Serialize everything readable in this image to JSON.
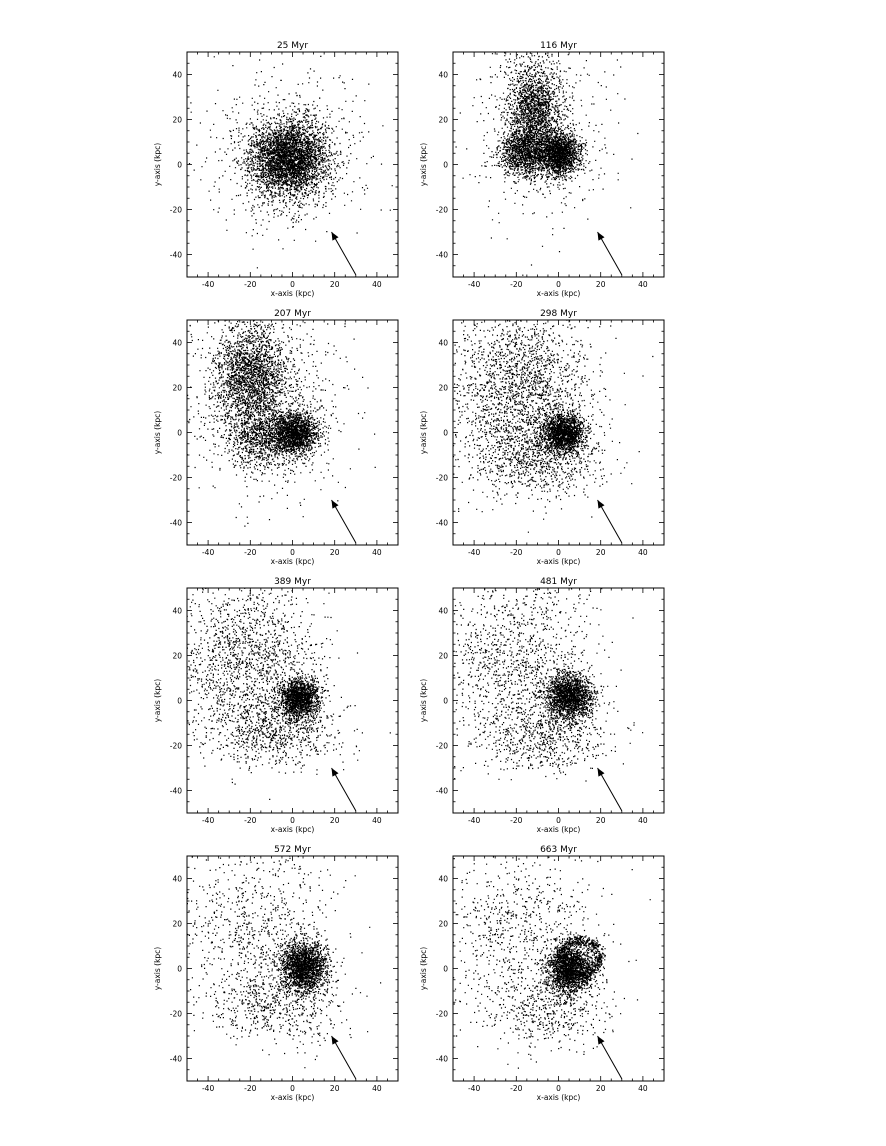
{
  "figure": {
    "description_free": true
  },
  "chart_data": [
    {
      "type": "scatter",
      "title": "25 Myr",
      "xlabel": "x-axis (kpc)",
      "ylabel": "y-axis (kpc)",
      "xlim": [
        -50,
        50
      ],
      "ylim": [
        -50,
        50
      ],
      "xticks": [
        -40,
        -20,
        0,
        20,
        40
      ],
      "yticks": [
        -40,
        -20,
        0,
        20,
        40
      ],
      "grid": false,
      "arrow": {
        "from": [
          30,
          -49
        ],
        "to": [
          18.5,
          -30
        ]
      },
      "components": [
        {
          "kind": "disk",
          "center": [
            -2,
            3
          ],
          "sigma": [
            11,
            10
          ],
          "points": 3200
        },
        {
          "kind": "halo",
          "center": [
            -2,
            3
          ],
          "sigma": [
            16,
            14
          ],
          "points": 900
        }
      ]
    },
    {
      "type": "scatter",
      "title": "116 Myr",
      "xlabel": "x-axis (kpc)",
      "ylabel": "y-axis (kpc)",
      "xlim": [
        -50,
        50
      ],
      "ylim": [
        -50,
        50
      ],
      "xticks": [
        -40,
        -20,
        0,
        20,
        40
      ],
      "yticks": [
        -40,
        -20,
        0,
        20,
        40
      ],
      "grid": false,
      "arrow": {
        "from": [
          30,
          -49
        ],
        "to": [
          18.5,
          -30
        ]
      },
      "components": [
        {
          "kind": "stream",
          "center": [
            -12,
            22
          ],
          "sigma": [
            8,
            15
          ],
          "points": 1900
        },
        {
          "kind": "core",
          "center": [
            0,
            5
          ],
          "sigma": [
            6,
            6
          ],
          "points": 1700
        },
        {
          "kind": "stream",
          "center": [
            -17,
            5
          ],
          "sigma": [
            7,
            6
          ],
          "points": 900
        },
        {
          "kind": "halo",
          "center": [
            -8,
            15
          ],
          "sigma": [
            14,
            18
          ],
          "points": 500
        }
      ]
    },
    {
      "type": "scatter",
      "title": "207 Myr",
      "xlabel": "x-axis (kpc)",
      "ylabel": "y-axis (kpc)",
      "xlim": [
        -50,
        50
      ],
      "ylim": [
        -50,
        50
      ],
      "xticks": [
        -40,
        -20,
        0,
        20,
        40
      ],
      "yticks": [
        -40,
        -20,
        0,
        20,
        40
      ],
      "grid": false,
      "arrow": {
        "from": [
          30,
          -49
        ],
        "to": [
          18.5,
          -30
        ]
      },
      "components": [
        {
          "kind": "core",
          "center": [
            1,
            0
          ],
          "sigma": [
            7,
            6
          ],
          "points": 1500
        },
        {
          "kind": "stream",
          "center": [
            -20,
            25
          ],
          "sigma": [
            11,
            15
          ],
          "points": 2200
        },
        {
          "kind": "stream",
          "center": [
            -13,
            -2
          ],
          "sigma": [
            12,
            8
          ],
          "points": 900
        },
        {
          "kind": "halo",
          "center": [
            -12,
            12
          ],
          "sigma": [
            17,
            20
          ],
          "points": 700
        }
      ]
    },
    {
      "type": "scatter",
      "title": "298 Myr",
      "xlabel": "x-axis (kpc)",
      "ylabel": "y-axis (kpc)",
      "xlim": [
        -50,
        50
      ],
      "ylim": [
        -50,
        50
      ],
      "xticks": [
        -40,
        -20,
        0,
        20,
        40
      ],
      "yticks": [
        -40,
        -20,
        0,
        20,
        40
      ],
      "grid": false,
      "arrow": {
        "from": [
          30,
          -49
        ],
        "to": [
          18.5,
          -30
        ]
      },
      "components": [
        {
          "kind": "core",
          "center": [
            2,
            0
          ],
          "sigma": [
            6,
            5.5
          ],
          "points": 1500
        },
        {
          "kind": "halo",
          "center": [
            -18,
            20
          ],
          "sigma": [
            15,
            16
          ],
          "points": 2000
        },
        {
          "kind": "halo",
          "center": [
            -10,
            -10
          ],
          "sigma": [
            14,
            8
          ],
          "points": 900
        }
      ]
    },
    {
      "type": "scatter",
      "title": "389 Myr",
      "xlabel": "x-axis (kpc)",
      "ylabel": "y-axis (kpc)",
      "xlim": [
        -50,
        50
      ],
      "ylim": [
        -50,
        50
      ],
      "xticks": [
        -40,
        -20,
        0,
        20,
        40
      ],
      "yticks": [
        -40,
        -20,
        0,
        20,
        40
      ],
      "grid": false,
      "arrow": {
        "from": [
          30,
          -49
        ],
        "to": [
          18.5,
          -30
        ]
      },
      "components": [
        {
          "kind": "core",
          "center": [
            3,
            1
          ],
          "sigma": [
            6,
            5.5
          ],
          "points": 1500
        },
        {
          "kind": "halo",
          "center": [
            -20,
            18
          ],
          "sigma": [
            15,
            17
          ],
          "points": 1600
        },
        {
          "kind": "halo",
          "center": [
            -8,
            -14
          ],
          "sigma": [
            14,
            7
          ],
          "points": 700
        }
      ]
    },
    {
      "type": "scatter",
      "title": "481 Myr",
      "xlabel": "x-axis (kpc)",
      "ylabel": "y-axis (kpc)",
      "xlim": [
        -50,
        50
      ],
      "ylim": [
        -50,
        50
      ],
      "xticks": [
        -40,
        -20,
        0,
        20,
        40
      ],
      "yticks": [
        -40,
        -20,
        0,
        20,
        40
      ],
      "grid": false,
      "arrow": {
        "from": [
          30,
          -49
        ],
        "to": [
          18.5,
          -30
        ]
      },
      "components": [
        {
          "kind": "core",
          "center": [
            5,
            2
          ],
          "sigma": [
            7,
            6.5
          ],
          "points": 1800
        },
        {
          "kind": "halo",
          "center": [
            -20,
            18
          ],
          "sigma": [
            16,
            17
          ],
          "points": 1200
        },
        {
          "kind": "halo",
          "center": [
            -6,
            -16
          ],
          "sigma": [
            14,
            7
          ],
          "points": 600
        }
      ]
    },
    {
      "type": "scatter",
      "title": "572 Myr",
      "xlabel": "x-axis (kpc)",
      "ylabel": "y-axis (kpc)",
      "xlim": [
        -50,
        50
      ],
      "ylim": [
        -50,
        50
      ],
      "xticks": [
        -40,
        -20,
        0,
        20,
        40
      ],
      "yticks": [
        -40,
        -20,
        0,
        20,
        40
      ],
      "grid": false,
      "arrow": {
        "from": [
          30,
          -49
        ],
        "to": [
          18.5,
          -30
        ]
      },
      "components": [
        {
          "kind": "core",
          "center": [
            5,
            1
          ],
          "sigma": [
            7,
            7
          ],
          "points": 1900
        },
        {
          "kind": "halo",
          "center": [
            -18,
            15
          ],
          "sigma": [
            17,
            18
          ],
          "points": 900
        },
        {
          "kind": "halo",
          "center": [
            -6,
            -18
          ],
          "sigma": [
            14,
            7
          ],
          "points": 450
        }
      ]
    },
    {
      "type": "scatter",
      "title": "663 Myr",
      "xlabel": "x-axis (kpc)",
      "ylabel": "y-axis (kpc)",
      "xlim": [
        -50,
        50
      ],
      "ylim": [
        -50,
        50
      ],
      "xticks": [
        -40,
        -20,
        0,
        20,
        40
      ],
      "yticks": [
        -40,
        -20,
        0,
        20,
        40
      ],
      "grid": false,
      "arrow": {
        "from": [
          30,
          -49
        ],
        "to": [
          18.5,
          -30
        ]
      },
      "components": [
        {
          "kind": "core",
          "center": [
            5,
            0
          ],
          "sigma": [
            7,
            7
          ],
          "points": 1800
        },
        {
          "kind": "ring",
          "center": [
            10,
            5
          ],
          "sigma": [
            9,
            8
          ],
          "points": 700
        },
        {
          "kind": "halo",
          "center": [
            -18,
            15
          ],
          "sigma": [
            17,
            18
          ],
          "points": 800
        },
        {
          "kind": "halo",
          "center": [
            -5,
            -20
          ],
          "sigma": [
            14,
            7
          ],
          "points": 400
        }
      ]
    }
  ]
}
